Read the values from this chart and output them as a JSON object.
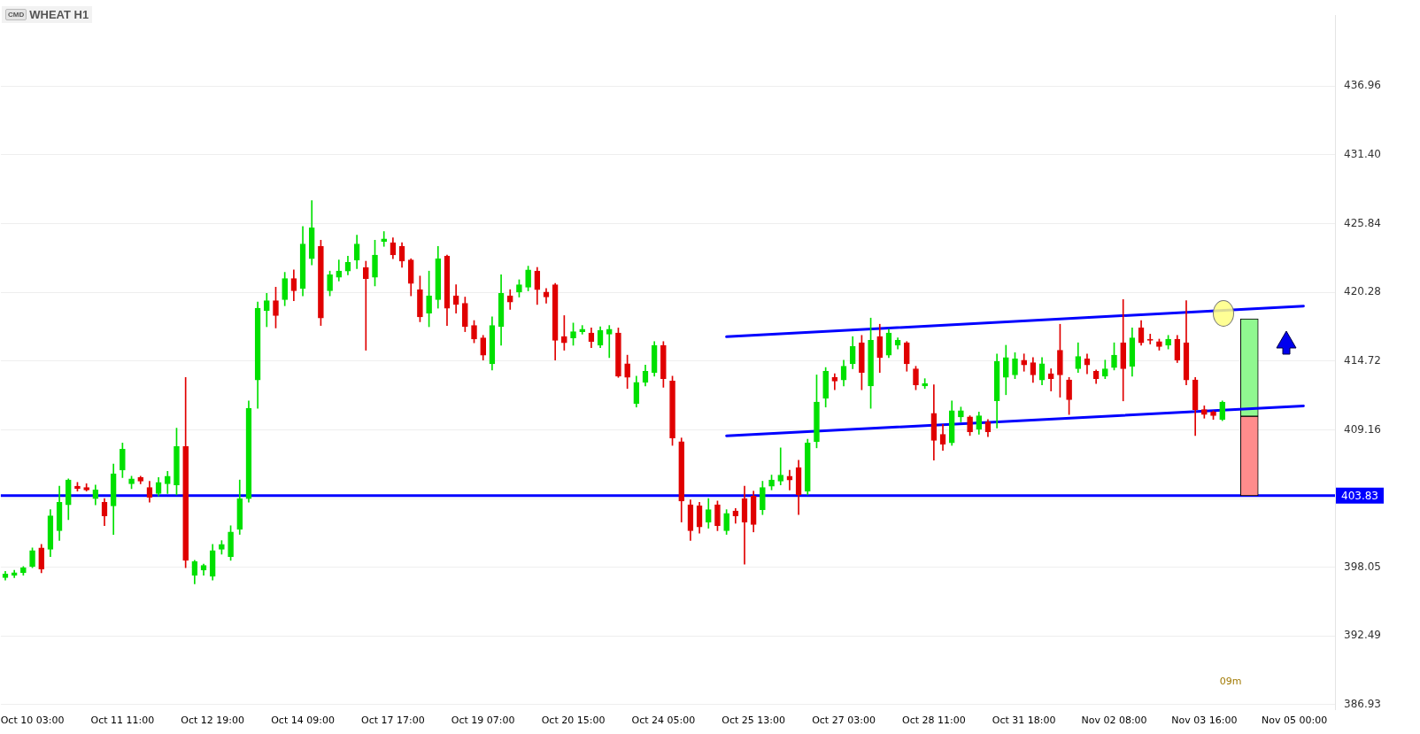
{
  "chart_data": {
    "type": "candlestick",
    "title": "WHEAT H1",
    "annotations": [
      "CMD",
      "09m"
    ],
    "categories": [
      null,
      null,
      null,
      "Oct 10 03:00",
      null,
      null,
      null,
      null,
      null,
      null,
      null,
      null,
      null,
      "Oct 11 11:00",
      null,
      null,
      null,
      null,
      null,
      null,
      null,
      null,
      null,
      "Oct 12 19:00",
      null,
      null,
      null,
      null,
      null,
      null,
      null,
      null,
      null,
      "Oct 14 09:00",
      null,
      null,
      null,
      null,
      null,
      null,
      null,
      null,
      null,
      "Oct 17 17:00",
      null,
      null,
      null,
      null,
      null,
      null,
      null,
      null,
      null,
      "Oct 19 07:00",
      null,
      null,
      null,
      null,
      null,
      null,
      null,
      null,
      null,
      "Oct 20 15:00",
      null,
      null,
      null,
      null,
      null,
      null,
      null,
      null,
      null,
      "Oct 24 05:00",
      null,
      null,
      null,
      null,
      null,
      null,
      null,
      null,
      null,
      "Oct 25 13:00",
      null,
      null,
      null,
      null,
      null,
      null,
      null,
      null,
      null,
      "Oct 27 03:00",
      null,
      null,
      null,
      null,
      null,
      null,
      null,
      null,
      null,
      "Oct 28 11:00",
      null,
      null,
      null,
      null,
      null,
      null,
      null,
      null,
      null,
      "Oct 31 18:00",
      null,
      null,
      null,
      null,
      null,
      null,
      null,
      null,
      null,
      "Nov 02 08:00",
      null,
      null,
      null,
      null,
      null,
      null,
      null,
      null,
      null,
      "Nov 03 16:00",
      null,
      null,
      null,
      null,
      null,
      null,
      null,
      null,
      null,
      "Nov 05 00:00",
      null,
      null,
      null,
      null
    ],
    "series": [
      {
        "ohlc": [
          [
            397.2,
            397.7,
            397.0,
            397.5
          ],
          [
            397.4,
            397.8,
            397.2,
            397.6
          ],
          [
            397.6,
            398.1,
            397.4,
            398.0
          ],
          [
            398.1,
            399.6,
            398.0,
            399.4
          ],
          [
            399.6,
            399.9,
            397.6,
            397.9
          ],
          [
            399.5,
            402.7,
            398.9,
            402.2
          ],
          [
            401.0,
            404.6,
            400.2,
            403.3
          ],
          [
            403.1,
            405.2,
            401.9,
            405.1
          ],
          [
            404.6,
            404.9,
            404.2,
            404.4
          ],
          [
            404.5,
            404.8,
            404.2,
            404.3
          ],
          [
            403.6,
            404.7,
            403.1,
            404.3
          ],
          [
            403.3,
            403.6,
            401.4,
            402.2
          ],
          [
            403.0,
            406.4,
            400.7,
            405.6
          ],
          [
            405.9,
            408.1,
            405.3,
            407.6
          ],
          [
            404.8,
            405.4,
            404.4,
            405.2
          ],
          [
            405.3,
            405.4,
            404.8,
            405.0
          ],
          [
            404.5,
            405.0,
            403.3,
            403.7
          ],
          [
            404.0,
            405.3,
            403.8,
            404.9
          ],
          [
            404.8,
            405.8,
            404.0,
            405.4
          ],
          [
            404.7,
            409.3,
            403.9,
            407.8
          ],
          [
            407.8,
            413.4,
            398.0,
            398.6
          ],
          [
            397.4,
            398.6,
            396.7,
            398.5
          ],
          [
            397.8,
            398.3,
            397.4,
            398.2
          ],
          [
            397.3,
            399.9,
            397.0,
            399.4
          ],
          [
            399.5,
            400.2,
            399.1,
            399.9
          ],
          [
            398.9,
            401.4,
            398.6,
            400.9
          ],
          [
            401.1,
            405.1,
            400.7,
            403.6
          ],
          [
            403.6,
            411.5,
            403.3,
            410.9
          ],
          [
            413.2,
            419.5,
            410.9,
            419.0
          ],
          [
            418.8,
            420.2,
            417.5,
            419.6
          ],
          [
            419.6,
            420.7,
            417.4,
            418.4
          ],
          [
            419.7,
            421.9,
            419.2,
            421.4
          ],
          [
            421.4,
            422.1,
            419.6,
            420.4
          ],
          [
            420.6,
            425.6,
            420.0,
            424.2
          ],
          [
            423.0,
            427.7,
            422.5,
            425.5
          ],
          [
            424.0,
            424.5,
            417.6,
            418.2
          ],
          [
            420.4,
            422.0,
            420.0,
            421.7
          ],
          [
            421.5,
            422.9,
            421.2,
            422.0
          ],
          [
            422.0,
            423.2,
            421.7,
            422.7
          ],
          [
            422.9,
            424.9,
            422.2,
            424.2
          ],
          [
            422.3,
            422.8,
            415.6,
            421.4
          ],
          [
            421.5,
            424.5,
            420.8,
            423.3
          ],
          [
            424.4,
            425.2,
            424.0,
            424.6
          ],
          [
            424.3,
            424.7,
            423.0,
            423.3
          ],
          [
            424.0,
            424.3,
            422.3,
            422.8
          ],
          [
            422.9,
            423.0,
            420.0,
            421.0
          ],
          [
            420.5,
            421.6,
            417.9,
            418.3
          ],
          [
            418.6,
            422.0,
            417.5,
            420.0
          ],
          [
            419.7,
            424.0,
            419.0,
            423.0
          ],
          [
            423.2,
            423.3,
            417.6,
            419.0
          ],
          [
            420.0,
            420.9,
            418.6,
            419.3
          ],
          [
            419.4,
            419.9,
            417.1,
            417.5
          ],
          [
            417.6,
            418.0,
            416.2,
            416.5
          ],
          [
            416.6,
            416.8,
            414.8,
            415.2
          ],
          [
            414.5,
            418.3,
            414.0,
            417.6
          ],
          [
            417.5,
            421.7,
            416.0,
            420.2
          ],
          [
            420.0,
            420.5,
            418.9,
            419.5
          ],
          [
            420.3,
            421.3,
            419.9,
            420.9
          ],
          [
            420.7,
            422.4,
            420.4,
            422.1
          ],
          [
            422.0,
            422.3,
            419.3,
            420.5
          ],
          [
            420.3,
            420.6,
            419.4,
            419.9
          ],
          [
            420.9,
            421.0,
            414.8,
            416.4
          ],
          [
            416.7,
            418.4,
            415.6,
            416.2
          ],
          [
            416.6,
            417.8,
            416.0,
            417.1
          ],
          [
            417.1,
            417.6,
            416.9,
            417.3
          ],
          [
            417.0,
            417.4,
            415.8,
            416.3
          ],
          [
            416.0,
            417.5,
            415.8,
            417.2
          ],
          [
            416.9,
            417.6,
            415.0,
            417.3
          ],
          [
            417.0,
            417.4,
            413.4,
            413.5
          ],
          [
            414.5,
            415.2,
            412.5,
            413.4
          ],
          [
            411.3,
            413.5,
            411.0,
            413.0
          ],
          [
            413.0,
            414.4,
            412.7,
            413.9
          ],
          [
            413.8,
            416.3,
            413.5,
            416.0
          ],
          [
            416.0,
            416.3,
            412.6,
            413.3
          ],
          [
            413.1,
            413.5,
            407.9,
            408.5
          ],
          [
            408.2,
            408.5,
            401.7,
            403.4
          ],
          [
            403.1,
            403.5,
            400.2,
            401.0
          ],
          [
            403.0,
            403.3,
            400.8,
            401.3
          ],
          [
            401.7,
            403.6,
            401.2,
            402.7
          ],
          [
            403.1,
            403.4,
            401.0,
            401.4
          ],
          [
            401.0,
            402.7,
            400.7,
            402.4
          ],
          [
            402.6,
            402.8,
            401.6,
            402.2
          ],
          [
            403.6,
            404.6,
            398.3,
            401.7
          ],
          [
            403.8,
            404.2,
            400.9,
            401.5
          ],
          [
            402.7,
            405.0,
            402.3,
            404.5
          ],
          [
            404.6,
            405.5,
            404.3,
            405.1
          ],
          [
            405.0,
            407.7,
            404.7,
            405.5
          ],
          [
            405.4,
            405.9,
            404.3,
            405.1
          ],
          [
            406.1,
            406.7,
            402.3,
            403.9
          ],
          [
            404.2,
            408.4,
            403.9,
            408.1
          ],
          [
            408.2,
            413.6,
            407.7,
            411.4
          ],
          [
            411.7,
            414.2,
            411.0,
            413.9
          ],
          [
            413.4,
            413.7,
            412.4,
            413.1
          ],
          [
            413.2,
            414.8,
            412.7,
            414.3
          ],
          [
            414.5,
            416.7,
            414.1,
            415.9
          ],
          [
            416.2,
            416.8,
            412.4,
            413.8
          ],
          [
            412.7,
            418.2,
            410.9,
            416.4
          ],
          [
            416.7,
            417.7,
            413.8,
            415.0
          ],
          [
            415.2,
            417.3,
            415.0,
            417.0
          ],
          [
            416.0,
            416.6,
            415.7,
            416.4
          ],
          [
            416.2,
            416.3,
            413.9,
            414.5
          ],
          [
            414.1,
            414.3,
            412.4,
            412.8
          ],
          [
            412.7,
            413.3,
            412.5,
            412.9
          ],
          [
            410.5,
            412.8,
            406.7,
            408.3
          ],
          [
            408.8,
            409.6,
            407.5,
            408.0
          ],
          [
            408.1,
            411.5,
            407.9,
            410.7
          ],
          [
            410.2,
            411.0,
            409.8,
            410.7
          ],
          [
            410.2,
            410.3,
            408.7,
            409.0
          ],
          [
            409.2,
            410.6,
            408.8,
            410.3
          ],
          [
            409.8,
            410.0,
            408.6,
            409.0
          ],
          [
            411.5,
            415.3,
            409.3,
            414.7
          ],
          [
            413.4,
            416.0,
            412.0,
            415.0
          ],
          [
            413.6,
            415.4,
            413.3,
            414.9
          ],
          [
            414.8,
            415.3,
            413.9,
            414.4
          ],
          [
            414.6,
            415.0,
            413.0,
            413.6
          ],
          [
            413.2,
            415.0,
            412.8,
            414.5
          ],
          [
            413.7,
            414.1,
            412.3,
            413.3
          ],
          [
            415.6,
            417.7,
            411.8,
            413.6
          ],
          [
            413.2,
            413.4,
            410.4,
            411.6
          ],
          [
            414.1,
            416.2,
            413.8,
            415.1
          ],
          [
            414.9,
            415.3,
            413.7,
            414.4
          ],
          [
            413.9,
            414.0,
            412.9,
            413.3
          ],
          [
            413.5,
            414.8,
            413.3,
            414.1
          ],
          [
            414.2,
            416.2,
            414.0,
            415.2
          ],
          [
            416.2,
            419.7,
            411.5,
            414.1
          ],
          [
            414.3,
            417.4,
            413.5,
            416.6
          ],
          [
            417.4,
            418.0,
            416.0,
            416.2
          ],
          [
            416.5,
            416.9,
            416.1,
            416.4
          ],
          [
            416.3,
            416.5,
            415.6,
            415.9
          ],
          [
            416.0,
            416.8,
            415.7,
            416.5
          ],
          [
            416.5,
            416.8,
            414.6,
            414.8
          ],
          [
            416.2,
            419.6,
            412.8,
            413.2
          ],
          [
            413.2,
            413.4,
            408.7,
            410.8
          ],
          [
            410.8,
            411.1,
            410.1,
            410.4
          ],
          [
            410.6,
            410.7,
            410.0,
            410.3
          ],
          [
            410.0,
            411.5,
            409.9,
            411.4
          ],
          null,
          null,
          null,
          null,
          null,
          null,
          null,
          null,
          null,
          null,
          null,
          null
        ],
        "colors": [
          "#00e000",
          "#00e000",
          "#00e000",
          "#00e000",
          "#e00000",
          "#00e000",
          "#00e000",
          "#00e000",
          "#e00000",
          "#e00000",
          "#00e000",
          "#e00000",
          "#00e000",
          "#00e000",
          "#00e000",
          "#e00000",
          "#e00000",
          "#00e000",
          "#00e000",
          "#00e000",
          "#e00000",
          "#00e000",
          "#00e000",
          "#00e000",
          "#00e000",
          "#00e000",
          "#00e000",
          "#00e000",
          "#00e000",
          "#00e000",
          "#e00000",
          "#00e000",
          "#e00000",
          "#00e000",
          "#00e000",
          "#e00000",
          "#00e000",
          "#00e000",
          "#00e000",
          "#00e000",
          "#e00000",
          "#00e000",
          "#00e000",
          "#e00000",
          "#e00000",
          "#e00000",
          "#e00000",
          "#00e000",
          "#00e000",
          "#e00000",
          "#e00000",
          "#e00000",
          "#e00000",
          "#e00000",
          "#00e000",
          "#00e000",
          "#e00000",
          "#00e000",
          "#00e000",
          "#e00000",
          "#e00000",
          "#e00000",
          "#e00000",
          "#00e000",
          "#00e000",
          "#e00000",
          "#00e000",
          "#00e000",
          "#e00000",
          "#e00000",
          "#00e000",
          "#00e000",
          "#00e000",
          "#e00000",
          "#e00000",
          "#e00000",
          "#e00000",
          "#e00000",
          "#00e000",
          "#e00000",
          "#00e000",
          "#e00000",
          "#e00000",
          "#e00000",
          "#00e000",
          "#00e000",
          "#00e000",
          "#e00000",
          "#e00000",
          "#00e000",
          "#00e000",
          "#00e000",
          "#e00000",
          "#00e000",
          "#00e000",
          "#e00000",
          "#00e000",
          "#e00000",
          "#00e000",
          "#00e000",
          "#e00000",
          "#e00000",
          "#00e000",
          "#e00000",
          "#e00000",
          "#00e000",
          "#00e000",
          "#e00000",
          "#00e000",
          "#e00000",
          "#00e000",
          "#00e000",
          "#00e000",
          "#e00000",
          "#e00000",
          "#00e000",
          "#e00000",
          "#e00000",
          "#e00000",
          "#00e000",
          "#e00000",
          "#e00000",
          "#00e000",
          "#00e000",
          "#e00000",
          "#00e000",
          "#e00000",
          "#e00000",
          "#e00000",
          "#00e000",
          "#e00000",
          "#e00000",
          "#e00000",
          "#e00000",
          "#e00000",
          "#00e000",
          null,
          null,
          null,
          null,
          null,
          null,
          null,
          null,
          null,
          null,
          null,
          null
        ]
      },
      {
        "type": "line",
        "color": "#0000ff",
        "values": [
          null,
          null,
          null,
          null,
          null,
          null,
          null,
          null,
          null,
          null,
          null,
          null,
          null,
          null,
          null,
          null,
          null,
          null,
          null,
          null,
          null,
          null,
          null,
          null,
          null,
          null,
          null,
          null,
          null,
          null,
          null,
          null,
          null,
          null,
          null,
          null,
          null,
          null,
          null,
          null,
          null,
          null,
          null,
          null,
          null,
          null,
          null,
          null,
          null,
          null,
          null,
          null,
          null,
          null,
          null,
          null,
          null,
          null,
          null,
          null,
          null,
          null,
          null,
          null,
          null,
          null,
          null,
          null,
          null,
          null,
          null,
          null,
          null,
          null,
          null,
          null,
          null,
          null,
          null,
          null,
          416.69,
          null,
          null,
          null,
          null,
          null,
          null,
          null,
          null,
          null,
          null,
          null,
          null,
          null,
          null,
          null,
          null,
          null,
          null,
          null,
          null,
          null,
          null,
          null,
          null,
          null,
          null,
          null,
          null,
          null,
          null,
          null,
          null,
          null,
          null,
          null,
          null,
          null,
          null,
          null,
          null,
          null,
          null,
          null,
          null,
          null,
          null,
          null,
          null,
          null,
          null,
          null,
          null,
          null,
          null,
          null,
          null,
          null,
          null,
          null,
          null,
          null,
          null,
          null,
          419.17,
          null,
          null,
          null
        ]
      },
      {
        "type": "line",
        "color": "#0000ff",
        "values": [
          null,
          null,
          null,
          null,
          null,
          null,
          null,
          null,
          null,
          null,
          null,
          null,
          null,
          null,
          null,
          null,
          null,
          null,
          null,
          null,
          null,
          null,
          null,
          null,
          null,
          null,
          null,
          null,
          null,
          null,
          null,
          null,
          null,
          null,
          null,
          null,
          null,
          null,
          null,
          null,
          null,
          null,
          null,
          null,
          null,
          null,
          null,
          null,
          null,
          null,
          null,
          null,
          null,
          null,
          null,
          null,
          null,
          null,
          null,
          null,
          null,
          null,
          null,
          null,
          null,
          null,
          null,
          null,
          null,
          null,
          null,
          null,
          null,
          null,
          null,
          null,
          null,
          null,
          null,
          null,
          408.67,
          null,
          null,
          null,
          null,
          null,
          null,
          null,
          null,
          null,
          null,
          null,
          null,
          null,
          null,
          null,
          null,
          null,
          null,
          null,
          null,
          null,
          null,
          null,
          null,
          null,
          null,
          null,
          null,
          null,
          null,
          null,
          null,
          null,
          null,
          null,
          null,
          null,
          null,
          null,
          null,
          null,
          null,
          null,
          null,
          null,
          null,
          null,
          null,
          null,
          null,
          null,
          null,
          null,
          null,
          null,
          null,
          null,
          null,
          null,
          null,
          null,
          null,
          null,
          411.09,
          null,
          null,
          null
        ]
      },
      {
        "type": "bar",
        "color": "#90f890",
        "values": [
          null,
          null,
          null,
          null,
          null,
          null,
          null,
          null,
          null,
          null,
          null,
          null,
          null,
          null,
          null,
          null,
          null,
          null,
          null,
          null,
          null,
          null,
          null,
          null,
          null,
          null,
          null,
          null,
          null,
          null,
          null,
          null,
          null,
          null,
          null,
          null,
          null,
          null,
          null,
          null,
          null,
          null,
          null,
          null,
          null,
          null,
          null,
          null,
          null,
          null,
          null,
          null,
          null,
          null,
          null,
          null,
          null,
          null,
          null,
          null,
          null,
          null,
          null,
          null,
          null,
          null,
          null,
          null,
          null,
          null,
          null,
          null,
          null,
          null,
          null,
          null,
          null,
          null,
          null,
          null,
          null,
          null,
          null,
          null,
          null,
          null,
          null,
          null,
          null,
          null,
          null,
          null,
          null,
          null,
          null,
          null,
          null,
          null,
          null,
          null,
          null,
          null,
          null,
          null,
          null,
          null,
          null,
          null,
          null,
          null,
          null,
          null,
          null,
          null,
          null,
          null,
          null,
          null,
          null,
          null,
          null,
          null,
          null,
          null,
          null,
          null,
          null,
          null,
          null,
          null,
          null,
          null,
          null,
          null,
          null,
          null,
          null,
          null,
          7.88,
          null,
          null,
          null,
          null,
          null,
          null,
          null,
          null,
          null
        ],
        "base": [
          null,
          null,
          null,
          null,
          null,
          null,
          null,
          null,
          null,
          null,
          null,
          null,
          null,
          null,
          null,
          null,
          null,
          null,
          null,
          null,
          null,
          null,
          null,
          null,
          null,
          null,
          null,
          null,
          null,
          null,
          null,
          null,
          null,
          null,
          null,
          null,
          null,
          null,
          null,
          null,
          null,
          null,
          null,
          null,
          null,
          null,
          null,
          null,
          null,
          null,
          null,
          null,
          null,
          null,
          null,
          null,
          null,
          null,
          null,
          null,
          null,
          null,
          null,
          null,
          null,
          null,
          null,
          null,
          null,
          null,
          null,
          null,
          null,
          null,
          null,
          null,
          null,
          null,
          null,
          null,
          null,
          null,
          null,
          null,
          null,
          null,
          null,
          null,
          null,
          null,
          null,
          null,
          null,
          null,
          null,
          null,
          null,
          null,
          null,
          null,
          null,
          null,
          null,
          null,
          null,
          null,
          null,
          null,
          null,
          null,
          null,
          null,
          null,
          null,
          null,
          null,
          null,
          null,
          null,
          null,
          null,
          null,
          null,
          null,
          null,
          null,
          null,
          null,
          null,
          null,
          null,
          null,
          null,
          null,
          null,
          null,
          null,
          null,
          410.26,
          null,
          null,
          null,
          null,
          null,
          null,
          null,
          null,
          null
        ]
      },
      {
        "type": "bar",
        "color": "#ff8c8c",
        "values": [
          null,
          null,
          null,
          null,
          null,
          null,
          null,
          null,
          null,
          null,
          null,
          null,
          null,
          null,
          null,
          null,
          null,
          null,
          null,
          null,
          null,
          null,
          null,
          null,
          null,
          null,
          null,
          null,
          null,
          null,
          null,
          null,
          null,
          null,
          null,
          null,
          null,
          null,
          null,
          null,
          null,
          null,
          null,
          null,
          null,
          null,
          null,
          null,
          null,
          null,
          null,
          null,
          null,
          null,
          null,
          null,
          null,
          null,
          null,
          null,
          null,
          null,
          null,
          null,
          null,
          null,
          null,
          null,
          null,
          null,
          null,
          null,
          null,
          null,
          null,
          null,
          null,
          null,
          null,
          null,
          null,
          null,
          null,
          null,
          null,
          null,
          null,
          null,
          null,
          null,
          null,
          null,
          null,
          null,
          null,
          null,
          null,
          null,
          null,
          null,
          null,
          null,
          null,
          null,
          null,
          null,
          null,
          null,
          null,
          null,
          null,
          null,
          null,
          null,
          null,
          null,
          null,
          null,
          null,
          null,
          null,
          null,
          null,
          null,
          null,
          null,
          null,
          null,
          null,
          null,
          null,
          null,
          null,
          null,
          null,
          null,
          null,
          null,
          6.43,
          null,
          null,
          null,
          null,
          null,
          null,
          null,
          null,
          null
        ],
        "base": [
          null,
          null,
          null,
          null,
          null,
          null,
          null,
          null,
          null,
          null,
          null,
          null,
          null,
          null,
          null,
          null,
          null,
          null,
          null,
          null,
          null,
          null,
          null,
          null,
          null,
          null,
          null,
          null,
          null,
          null,
          null,
          null,
          null,
          null,
          null,
          null,
          null,
          null,
          null,
          null,
          null,
          null,
          null,
          null,
          null,
          null,
          null,
          null,
          null,
          null,
          null,
          null,
          null,
          null,
          null,
          null,
          null,
          null,
          null,
          null,
          null,
          null,
          null,
          null,
          null,
          null,
          null,
          null,
          null,
          null,
          null,
          null,
          null,
          null,
          null,
          null,
          null,
          null,
          null,
          null,
          null,
          null,
          null,
          null,
          null,
          null,
          null,
          null,
          null,
          null,
          null,
          null,
          null,
          null,
          null,
          null,
          null,
          null,
          null,
          null,
          null,
          null,
          null,
          null,
          null,
          null,
          null,
          null,
          null,
          null,
          null,
          null,
          null,
          null,
          null,
          null,
          null,
          null,
          null,
          null,
          null,
          null,
          null,
          null,
          null,
          null,
          null,
          null,
          null,
          null,
          null,
          null,
          null,
          null,
          null,
          null,
          null,
          null,
          403.83,
          null,
          null,
          null,
          null,
          null,
          null,
          null,
          null,
          null
        ]
      }
    ],
    "ylim": [
      386.5,
      442.7
    ],
    "yticks": [
      386.93,
      392.49,
      398.05,
      {
        "value": 403.6,
        "label": null
      },
      409.16,
      414.72,
      420.28,
      425.84,
      {
        "value": 431.4,
        "label": "431.40"
      },
      436.96
    ],
    "grid": "y",
    "ref_lines": [
      {
        "axis": "y",
        "value": 403.83,
        "label": "403.83",
        "color": "#0000ff"
      }
    ]
  }
}
